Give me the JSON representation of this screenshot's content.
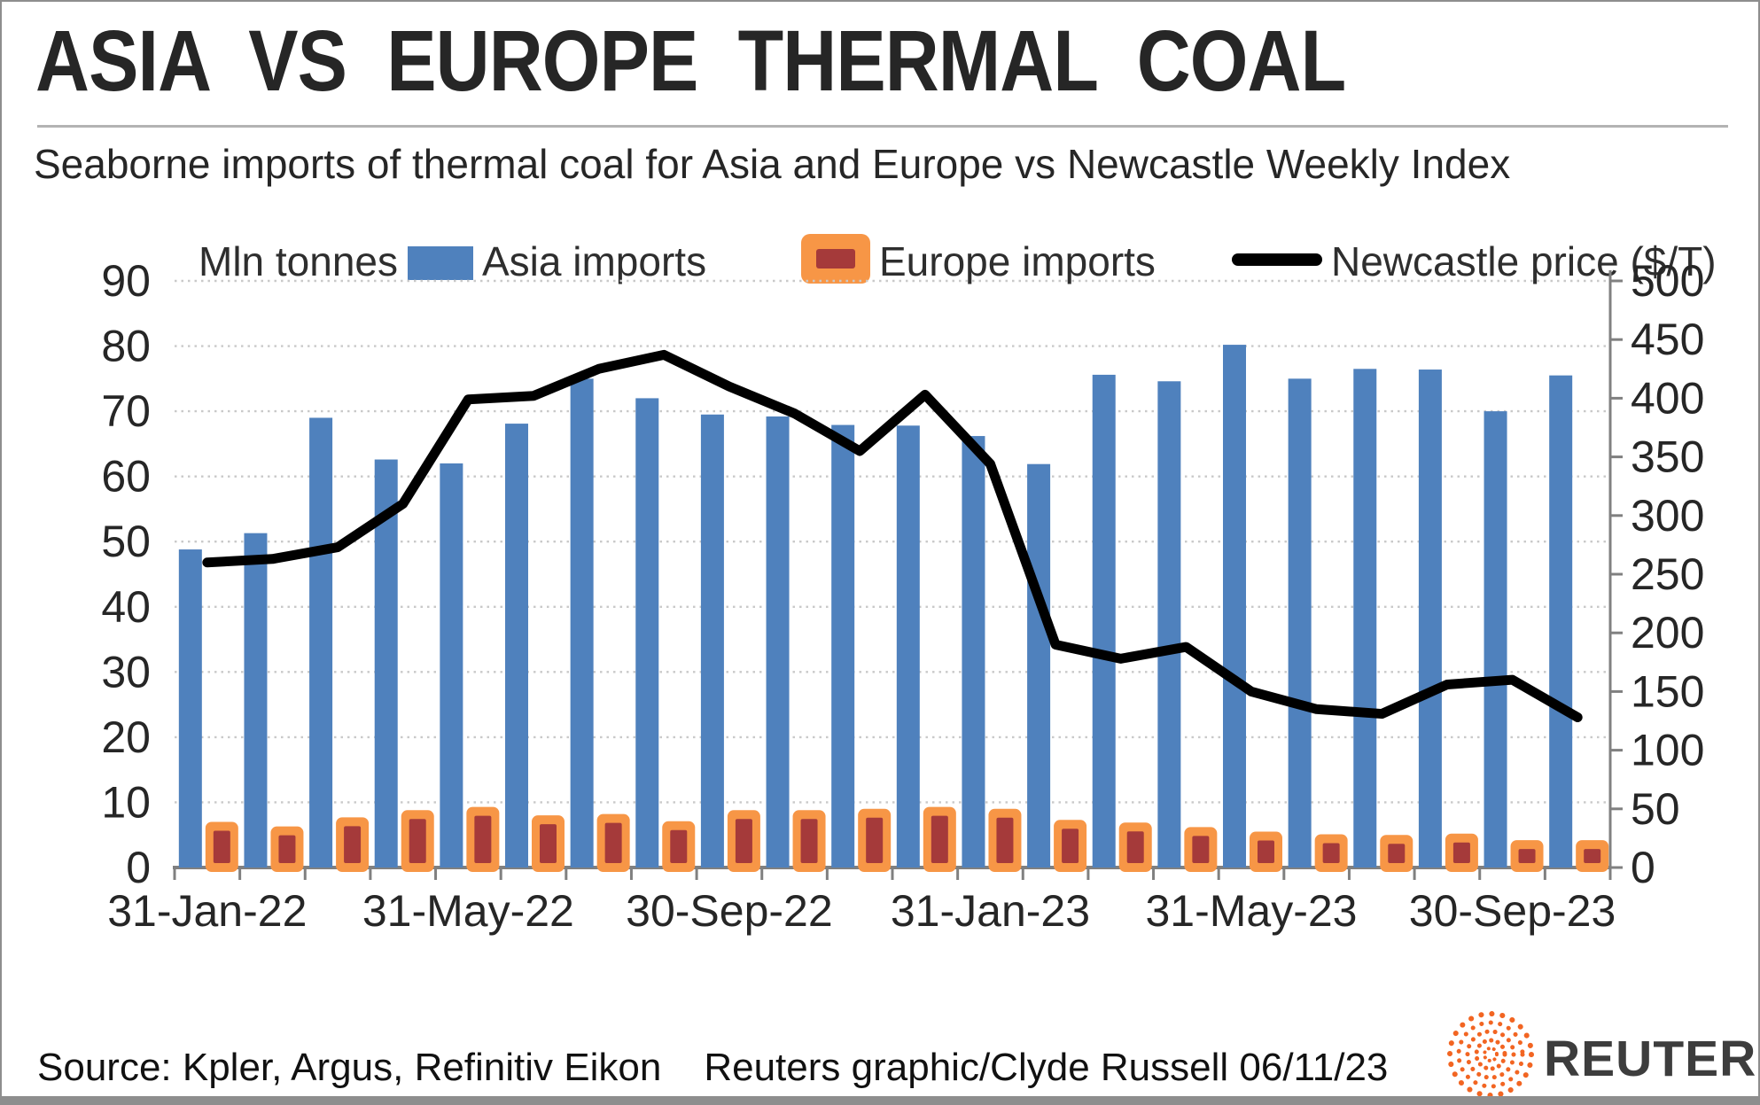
{
  "header": {
    "title": "ASIA VS EUROPE THERMAL COAL",
    "subtitle": "Seaborne imports of thermal coal for Asia and Europe vs Newcastle Weekly Index"
  },
  "legend": {
    "units": "Mln tonnes",
    "asia": "Asia imports",
    "europe": "Europe imports",
    "newcastle": "Newcastle price ($/T)"
  },
  "footer": {
    "source": "Source: Kpler, Argus, Refinitiv Eikon",
    "credit": "Reuters graphic/Clyde Russell 06/11/23",
    "logo_text": "REUTERS"
  },
  "colors": {
    "asia_bar": "#4F81BD",
    "europe_border": "#F79646",
    "europe_fill": "#A53A3A",
    "price_line": "#000000",
    "grid": "#c9c9c9",
    "axis": "#808080",
    "tick_text": "#262626",
    "logo_orange": "#F26522"
  },
  "chart_data": {
    "type": "bar",
    "title": "Seaborne imports of thermal coal for Asia and Europe vs Newcastle Weekly Index",
    "categories": [
      "Jan-22",
      "Feb-22",
      "Mar-22",
      "Apr-22",
      "May-22",
      "Jun-22",
      "Jul-22",
      "Aug-22",
      "Sep-22",
      "Oct-22",
      "Nov-22",
      "Dec-22",
      "Jan-23",
      "Feb-23",
      "Mar-23",
      "Apr-23",
      "May-23",
      "Jun-23",
      "Jul-23",
      "Aug-23",
      "Sep-23",
      "Oct-23"
    ],
    "series": [
      {
        "name": "Asia imports",
        "type": "bar",
        "axis": "left",
        "values": [
          48.8,
          51.3,
          69.0,
          62.6,
          62.0,
          68.1,
          75.0,
          72.0,
          69.5,
          69.2,
          67.9,
          67.8,
          66.2,
          61.9,
          75.6,
          74.6,
          80.2,
          75.0,
          76.5,
          76.4,
          70.0,
          75.5
        ]
      },
      {
        "name": "Europe imports",
        "type": "bar",
        "axis": "left",
        "values": [
          7.0,
          6.3,
          7.7,
          8.8,
          9.3,
          8.0,
          8.2,
          7.1,
          8.8,
          8.8,
          9.0,
          9.3,
          9.0,
          7.3,
          6.9,
          6.2,
          5.5,
          5.1,
          5.0,
          5.2,
          4.2,
          4.2
        ]
      },
      {
        "name": "Newcastle price ($/T)",
        "type": "line",
        "axis": "right",
        "values": [
          260,
          263,
          273,
          310,
          399,
          402,
          425,
          437,
          410,
          387,
          355,
          403,
          344,
          190,
          178,
          188,
          150,
          135,
          131,
          156,
          160,
          128
        ]
      }
    ],
    "left_axis": {
      "label": "Mln tonnes",
      "min": 0,
      "max": 90,
      "ticks": [
        0,
        10,
        20,
        30,
        40,
        50,
        60,
        70,
        80,
        90
      ]
    },
    "right_axis": {
      "label": "Newcastle price ($/T)",
      "min": 0,
      "max": 500,
      "ticks": [
        0,
        50,
        100,
        150,
        200,
        250,
        300,
        350,
        400,
        450,
        500
      ]
    },
    "x_tick_labels": [
      "31-Jan-22",
      "31-May-22",
      "30-Sep-22",
      "31-Jan-23",
      "31-May-23",
      "30-Sep-23"
    ],
    "x_tick_label_every": 4,
    "grid": "horizontal dotted",
    "legend_position": "top"
  }
}
